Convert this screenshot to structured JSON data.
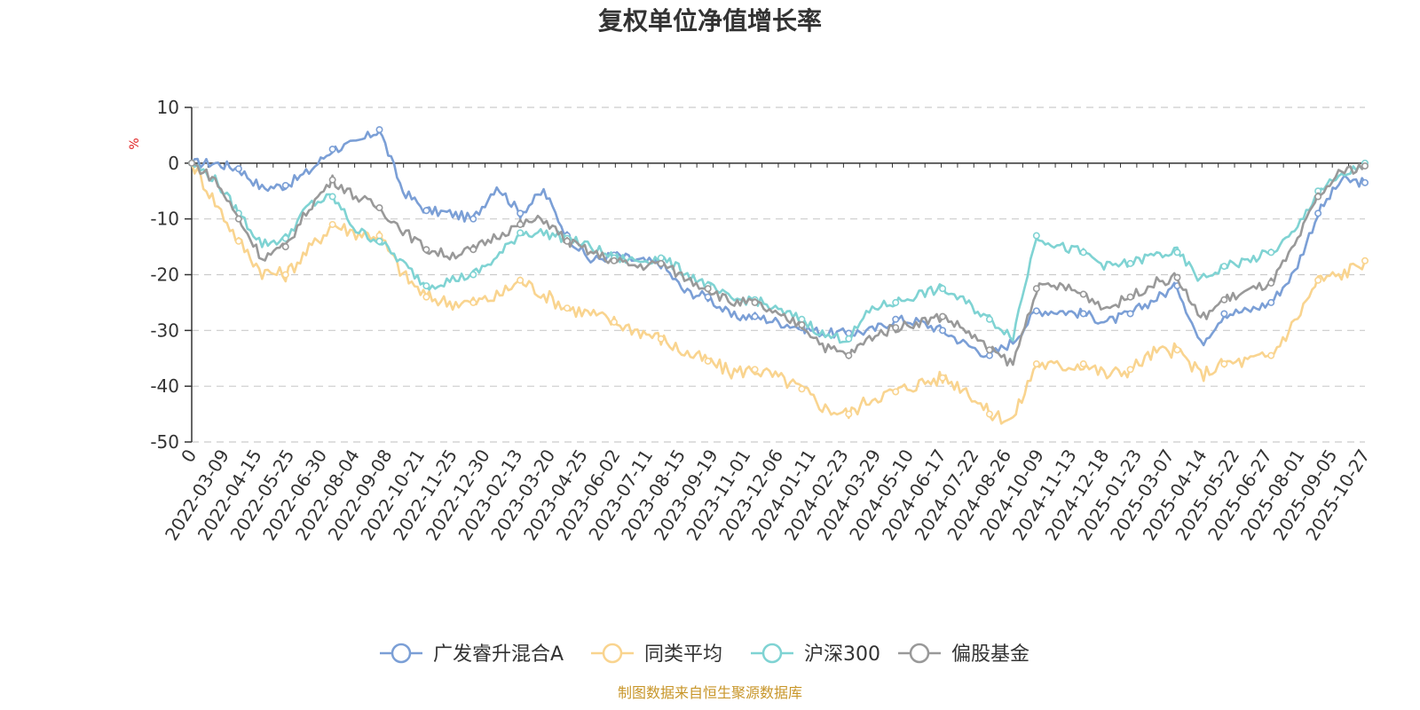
{
  "chart_data": {
    "type": "line",
    "title": "复权单位净值增长率",
    "ylabel": "%",
    "xlabel": "",
    "ylim": [
      -50,
      10
    ],
    "yticks": [
      10,
      0,
      -10,
      -20,
      -30,
      -40,
      -50
    ],
    "x_tick_labels": [
      "0",
      "2022-03-09",
      "2022-04-15",
      "2022-05-25",
      "2022-06-30",
      "2022-08-04",
      "2022-09-08",
      "2022-10-21",
      "2022-11-25",
      "2022-12-30",
      "2023-02-13",
      "2023-03-20",
      "2023-04-25",
      "2023-06-02",
      "2023-07-11",
      "2023-08-15",
      "2023-09-19",
      "2023-11-01",
      "2023-12-06",
      "2024-01-11",
      "2024-02-23",
      "2024-03-29",
      "2024-05-10",
      "2024-06-17",
      "2024-07-22",
      "2024-08-26",
      "2024-10-09",
      "2024-11-13",
      "2024-12-18",
      "2025-01-23",
      "2025-03-07",
      "2025-04-14",
      "2025-05-22",
      "2025-06-27",
      "2025-08-01",
      "2025-09-05",
      "2025-10-27"
    ],
    "grid": true,
    "legend_position": "bottom",
    "series": [
      {
        "name": "广发睿升混合A",
        "color": "#7b9fd6",
        "values": [
          0,
          0,
          -1,
          -4.5,
          -4,
          -1.5,
          2.5,
          3.5,
          6,
          -5,
          -8.5,
          -9,
          -10,
          -4,
          -9,
          -5,
          -13,
          -17.5,
          -16.5,
          -17.5,
          -18,
          -23,
          -24,
          -27.5,
          -27.5,
          -28.5,
          -29.5,
          -30.5,
          -30.5,
          -30,
          -28,
          -28.5,
          -30,
          -32.5,
          -34.5,
          -32,
          -26.5,
          -26.5,
          -27,
          -28.5,
          -27,
          -24.5,
          -22,
          -32.5,
          -27,
          -26.5,
          -25,
          -19.5,
          -9,
          -3,
          -3.5
        ]
      },
      {
        "name": "同类平均",
        "color": "#f9d48f",
        "values": [
          0,
          -7,
          -14,
          -19.5,
          -20,
          -15.5,
          -11,
          -12.5,
          -13,
          -20,
          -24,
          -25,
          -25,
          -24,
          -21,
          -23.5,
          -26,
          -27,
          -28.5,
          -30,
          -31.5,
          -34,
          -35.5,
          -37.5,
          -37,
          -38.5,
          -40.5,
          -44,
          -45,
          -42,
          -41,
          -39.5,
          -38.5,
          -40.5,
          -45,
          -46,
          -36,
          -36.5,
          -36,
          -38,
          -37,
          -34,
          -33.5,
          -38,
          -36,
          -35.5,
          -34.5,
          -28.5,
          -21,
          -20,
          -17.5
        ]
      },
      {
        "name": "沪深300",
        "color": "#7fd3d3",
        "values": [
          0,
          -3,
          -9,
          -14.5,
          -13.5,
          -7.5,
          -6,
          -12,
          -14,
          -18,
          -22,
          -21,
          -20,
          -17,
          -12.5,
          -12.5,
          -13.5,
          -15,
          -17,
          -17.5,
          -17,
          -19.5,
          -22,
          -24.5,
          -24.5,
          -26.5,
          -28,
          -31,
          -31.5,
          -26,
          -25,
          -23.5,
          -22.5,
          -25,
          -28,
          -31,
          -13,
          -15,
          -16,
          -18.5,
          -18,
          -16.5,
          -16,
          -21,
          -18.5,
          -17.5,
          -16,
          -12.5,
          -5,
          -2.5,
          0
        ]
      },
      {
        "name": "偏股基金",
        "color": "#999999",
        "values": [
          0,
          -3,
          -10,
          -17,
          -15,
          -8,
          -3,
          -6,
          -8,
          -12,
          -15.5,
          -16.5,
          -15.5,
          -13,
          -11,
          -10,
          -14,
          -16,
          -17.5,
          -18.5,
          -18,
          -20.5,
          -22.5,
          -25,
          -25,
          -27.5,
          -29,
          -33,
          -34.5,
          -31,
          -29.5,
          -28.5,
          -27.5,
          -30,
          -33.5,
          -36,
          -22.5,
          -22,
          -23.5,
          -26,
          -24,
          -21.5,
          -20.5,
          -28,
          -24.5,
          -23,
          -21.5,
          -15,
          -6,
          -1.5,
          -0.5
        ]
      }
    ]
  },
  "source_text": "制图数据来自恒生聚源数据库"
}
